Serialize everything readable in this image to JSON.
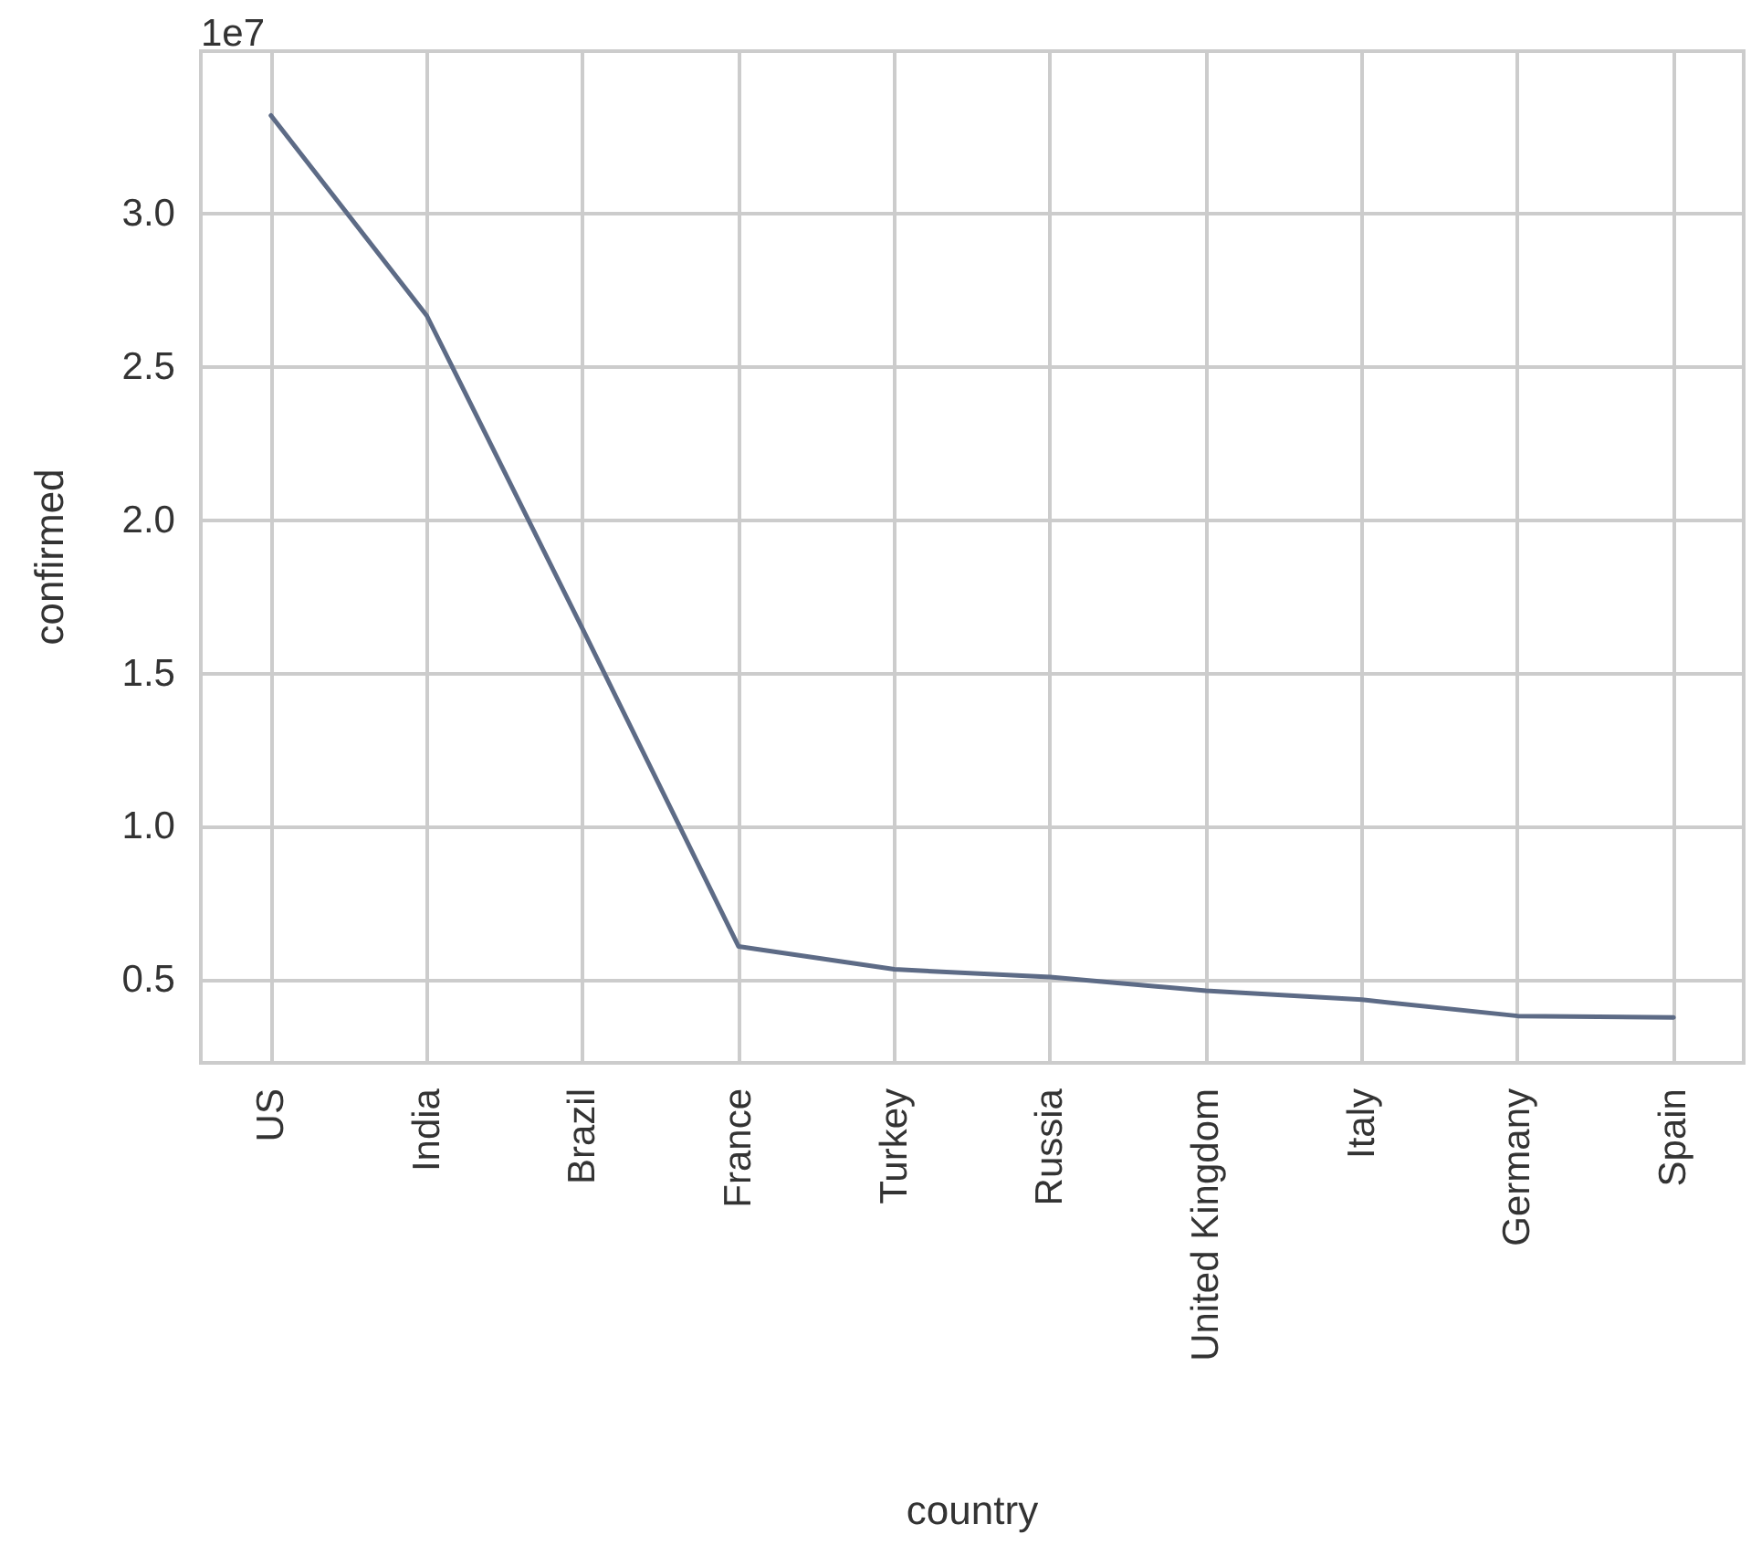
{
  "chart_data": {
    "type": "line",
    "xlabel": "country",
    "ylabel": "confirmed",
    "annotations": [
      "1e7"
    ],
    "categories": [
      "US",
      "India",
      "Brazil",
      "France",
      "Turkey",
      "Russia",
      "United Kingdom",
      "Italy",
      "Germany",
      "Spain"
    ],
    "series": [
      {
        "color": "#5d6b86",
        "values": [
          3.32,
          2.667,
          1.645,
          0.61,
          0.535,
          0.51,
          0.465,
          0.436,
          0.383,
          0.378
        ]
      }
    ],
    "ylim": [
      0.23,
      3.53
    ],
    "yticks": [
      0.5,
      {
        "value": 1,
        "label": "1.0"
      },
      1.5,
      {
        "value": 2,
        "label": "2.0"
      },
      2.5,
      {
        "value": 3,
        "label": "3.0"
      }
    ],
    "grid": true,
    "marker": "none",
    "line_style": "solid"
  }
}
